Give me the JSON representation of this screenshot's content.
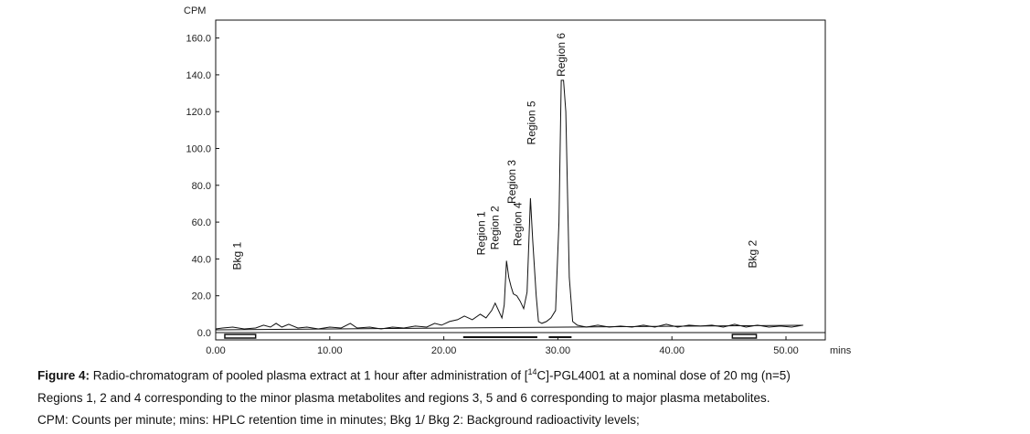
{
  "chart_data": {
    "type": "line",
    "ylabel": "CPM",
    "xlabel": "mins",
    "xlim": [
      0,
      51.5
    ],
    "ylim": [
      0,
      170
    ],
    "x_ticks": [
      "0.00",
      "10.00",
      "20.00",
      "30.00",
      "40.00",
      "50.00"
    ],
    "y_ticks": [
      "0.0",
      "20.0",
      "40.0",
      "60.0",
      "80.0",
      "100.0",
      "120.0",
      "140.0",
      "160.0"
    ],
    "series": [
      {
        "values": [
          [
            0,
            2
          ],
          [
            0.6,
            2.5
          ],
          [
            1.5,
            3
          ],
          [
            2.5,
            2
          ],
          [
            3.5,
            2.5
          ],
          [
            4.2,
            4
          ],
          [
            4.8,
            3
          ],
          [
            5.3,
            5
          ],
          [
            5.8,
            3
          ],
          [
            6.4,
            4.5
          ],
          [
            7.2,
            2.5
          ],
          [
            8,
            3
          ],
          [
            9,
            2
          ],
          [
            10,
            3
          ],
          [
            11,
            2.5
          ],
          [
            11.8,
            5
          ],
          [
            12.4,
            2.5
          ],
          [
            13.5,
            3
          ],
          [
            14.5,
            2
          ],
          [
            15.5,
            3
          ],
          [
            16.5,
            2.5
          ],
          [
            17.5,
            3.5
          ],
          [
            18.5,
            3
          ],
          [
            19.2,
            5
          ],
          [
            19.8,
            4
          ],
          [
            20.5,
            6
          ],
          [
            21.2,
            7
          ],
          [
            21.8,
            9
          ],
          [
            22.5,
            7
          ],
          [
            23.2,
            10
          ],
          [
            23.7,
            8
          ],
          [
            24.2,
            12
          ],
          [
            24.5,
            16
          ],
          [
            24.8,
            12
          ],
          [
            25.1,
            8
          ],
          [
            25.3,
            15
          ],
          [
            25.5,
            39
          ],
          [
            25.7,
            30
          ],
          [
            25.9,
            25
          ],
          [
            26.1,
            21
          ],
          [
            26.4,
            20
          ],
          [
            26.7,
            17
          ],
          [
            27,
            13
          ],
          [
            27.3,
            22
          ],
          [
            27.6,
            73
          ],
          [
            27.8,
            50
          ],
          [
            28.1,
            20
          ],
          [
            28.3,
            6
          ],
          [
            28.6,
            5
          ],
          [
            29,
            6
          ],
          [
            29.4,
            8
          ],
          [
            29.8,
            12
          ],
          [
            30.1,
            60
          ],
          [
            30.3,
            137
          ],
          [
            30.5,
            137
          ],
          [
            30.7,
            120
          ],
          [
            31,
            30
          ],
          [
            31.3,
            6
          ],
          [
            31.7,
            4
          ],
          [
            32.5,
            3
          ],
          [
            33.5,
            4
          ],
          [
            34.5,
            3
          ],
          [
            35.5,
            3.5
          ],
          [
            36.5,
            3
          ],
          [
            37.5,
            4
          ],
          [
            38.5,
            3
          ],
          [
            39.5,
            4.5
          ],
          [
            40.5,
            3
          ],
          [
            41.5,
            4
          ],
          [
            42.5,
            3.5
          ],
          [
            43.5,
            4
          ],
          [
            44.5,
            3
          ],
          [
            45.5,
            4.5
          ],
          [
            46.5,
            3
          ],
          [
            47.5,
            4
          ],
          [
            48.5,
            3
          ],
          [
            49.5,
            3.5
          ],
          [
            50.5,
            3
          ],
          [
            51.5,
            4
          ]
        ]
      },
      {
        "values": [
          [
            0,
            1.5
          ],
          [
            51.5,
            4
          ]
        ]
      }
    ],
    "annotations": [
      {
        "text": "Bkg 1",
        "x": 2.2,
        "y": 34
      },
      {
        "text": "Region 1",
        "x": 23.6,
        "y": 42
      },
      {
        "text": "Region 2",
        "x": 24.8,
        "y": 45
      },
      {
        "text": "Region 3",
        "x": 26.3,
        "y": 70
      },
      {
        "text": "Region 4",
        "x": 26.8,
        "y": 47
      },
      {
        "text": "Region 5",
        "x": 28.0,
        "y": 102
      },
      {
        "text": "Region 6",
        "x": 30.6,
        "y": 139
      },
      {
        "text": "Bkg 2",
        "x": 47.4,
        "y": 35
      }
    ],
    "background_ranges": [
      [
        0.8,
        3.5
      ],
      [
        45.3,
        47.4
      ]
    ],
    "metabolite_ranges": [
      [
        21.7,
        28.2
      ],
      [
        29.2,
        31.2
      ]
    ]
  },
  "caption": {
    "label": "Figure 4:",
    "line1_before": " Radio-chromatogram of pooled plasma extract at 1 hour after administration of [",
    "line1_sup": "14",
    "line1_after": "C]-PGL4001 at a nominal dose of 20 mg (n=5)",
    "line2": "Regions 1, 2 and 4 corresponding to the minor plasma metabolites and regions 3, 5 and 6 corresponding to major plasma metabolites.",
    "line3": "CPM: Counts per minute; mins: HPLC retention time in minutes; Bkg 1/ Bkg 2: Background radioactivity levels;"
  }
}
